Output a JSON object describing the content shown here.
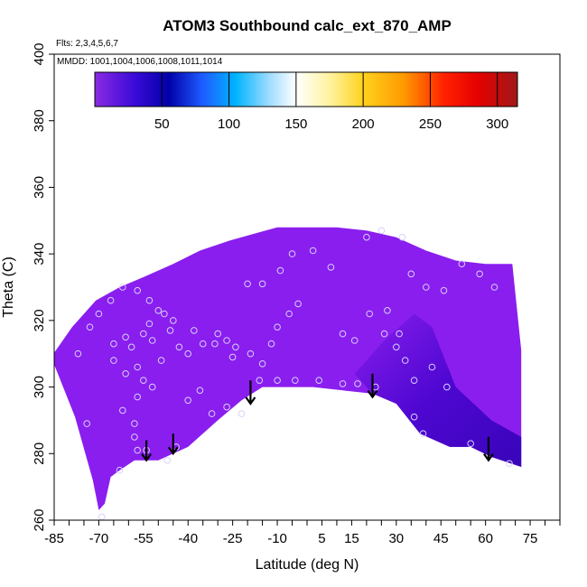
{
  "chart_data": {
    "type": "heatmap",
    "title": "ATOM3 Southbound calc_ext_870_AMP",
    "flights_note": "Flts: 2,3,4,5,6,7",
    "dates_note": "MMDD: 1001,1004,1006,1008,1011,1014",
    "xlabel": "Latitude (deg N)",
    "ylabel": "Theta (C)",
    "xlim": [
      -85,
      85
    ],
    "ylim": [
      260,
      400
    ],
    "x_ticks": [
      -85,
      -70,
      -55,
      -40,
      -25,
      -10,
      5,
      15,
      30,
      45,
      60,
      75
    ],
    "x_tick_labels": [
      "-85",
      "-70",
      "-55",
      "-40",
      "-25",
      "-10",
      "5",
      "15",
      "30",
      "45",
      "60",
      "75"
    ],
    "y_ticks": [
      260,
      280,
      300,
      320,
      340,
      360,
      380,
      400
    ],
    "y_tick_labels": [
      "260",
      "280",
      "300",
      "320",
      "340",
      "360",
      "380",
      "400"
    ],
    "colorbar": {
      "range": [
        0,
        315
      ],
      "ticks": [
        50,
        100,
        150,
        200,
        250,
        300
      ],
      "tick_labels": [
        "50",
        "100",
        "150",
        "200",
        "250",
        "300"
      ],
      "stops": [
        {
          "v": 0,
          "c": "#8a2be2"
        },
        {
          "v": 30,
          "c": "#3a0ad8"
        },
        {
          "v": 55,
          "c": "#0000a8"
        },
        {
          "v": 80,
          "c": "#1e5bff"
        },
        {
          "v": 105,
          "c": "#00b4ff"
        },
        {
          "v": 130,
          "c": "#9fdcff"
        },
        {
          "v": 150,
          "c": "#ffffff"
        },
        {
          "v": 175,
          "c": "#fff3a0"
        },
        {
          "v": 200,
          "c": "#ffd21e"
        },
        {
          "v": 230,
          "c": "#ff9a00"
        },
        {
          "v": 260,
          "c": "#ff2200"
        },
        {
          "v": 285,
          "c": "#e60000"
        },
        {
          "v": 315,
          "c": "#a01818"
        }
      ]
    },
    "field_base_color": "#8a1eee",
    "darker_region_color": "#3c00c8",
    "domain_upper_boundary": [
      [
        -86,
        309
      ],
      [
        -79,
        318
      ],
      [
        -71,
        326
      ],
      [
        -63,
        330
      ],
      [
        -55,
        333
      ],
      [
        -45,
        337
      ],
      [
        -36,
        341
      ],
      [
        -26,
        344
      ],
      [
        -18,
        346
      ],
      [
        -10,
        348
      ],
      [
        0,
        348
      ],
      [
        10,
        348
      ],
      [
        20,
        347
      ],
      [
        30,
        345
      ],
      [
        40,
        341
      ],
      [
        50,
        338
      ],
      [
        60,
        337
      ],
      [
        69,
        337
      ],
      [
        72,
        311
      ]
    ],
    "domain_lower_boundary": [
      [
        -86,
        309
      ],
      [
        -78,
        291
      ],
      [
        -72,
        272
      ],
      [
        -70,
        263
      ],
      [
        -68,
        265
      ],
      [
        -66,
        273
      ],
      [
        -63,
        275
      ],
      [
        -58,
        278
      ],
      [
        -50,
        278
      ],
      [
        -40,
        282
      ],
      [
        -30,
        290
      ],
      [
        -22,
        296
      ],
      [
        -15,
        300
      ],
      [
        -8,
        300
      ],
      [
        2,
        300
      ],
      [
        12,
        299
      ],
      [
        22,
        298
      ],
      [
        30,
        295
      ],
      [
        38,
        286
      ],
      [
        48,
        282
      ],
      [
        55,
        282
      ],
      [
        62,
        279
      ],
      [
        72,
        276
      ]
    ],
    "darker_region": [
      [
        16,
        304
      ],
      [
        26,
        314
      ],
      [
        36,
        322
      ],
      [
        42,
        318
      ],
      [
        50,
        300
      ],
      [
        62,
        290
      ],
      [
        72,
        285
      ],
      [
        72,
        276
      ],
      [
        62,
        279
      ],
      [
        55,
        282
      ],
      [
        48,
        282
      ],
      [
        38,
        286
      ],
      [
        30,
        295
      ],
      [
        22,
        298
      ]
    ],
    "observations": [
      [
        -69,
        261
      ],
      [
        -63,
        275
      ],
      [
        -57,
        281
      ],
      [
        -58,
        285
      ],
      [
        -58,
        289
      ],
      [
        -62,
        293
      ],
      [
        -57,
        297
      ],
      [
        -55,
        302
      ],
      [
        -52,
        300
      ],
      [
        -49,
        308
      ],
      [
        -57,
        306
      ],
      [
        -61,
        304
      ],
      [
        -65,
        308
      ],
      [
        -74,
        289
      ],
      [
        -77,
        310
      ],
      [
        -65,
        313
      ],
      [
        -61,
        315
      ],
      [
        -59,
        312
      ],
      [
        -55,
        316
      ],
      [
        -52,
        314
      ],
      [
        -46,
        317
      ],
      [
        -43,
        312
      ],
      [
        -40,
        310
      ],
      [
        -35,
        313
      ],
      [
        -30,
        316
      ],
      [
        -27,
        314
      ],
      [
        -24,
        312
      ],
      [
        -19,
        310
      ],
      [
        -15,
        307
      ],
      [
        -12,
        313
      ],
      [
        -10,
        318
      ],
      [
        -6,
        322
      ],
      [
        -3,
        325
      ],
      [
        -50,
        323
      ],
      [
        -48,
        322
      ],
      [
        -45,
        320
      ],
      [
        -53,
        326
      ],
      [
        -57,
        329
      ],
      [
        -62,
        330
      ],
      [
        -66,
        326
      ],
      [
        -70,
        322
      ],
      [
        -73,
        318
      ],
      [
        -20,
        331
      ],
      [
        -15,
        331
      ],
      [
        -9,
        335
      ],
      [
        -5,
        340
      ],
      [
        2,
        341
      ],
      [
        8,
        336
      ],
      [
        20,
        345
      ],
      [
        25,
        347
      ],
      [
        32,
        345
      ],
      [
        35,
        334
      ],
      [
        40,
        330
      ],
      [
        46,
        329
      ],
      [
        52,
        337
      ],
      [
        58,
        334
      ],
      [
        63,
        330
      ],
      [
        -40,
        296
      ],
      [
        -36,
        299
      ],
      [
        -32,
        292
      ],
      [
        -27,
        294
      ],
      [
        -22,
        292
      ],
      [
        -16,
        302
      ],
      [
        -10,
        302
      ],
      [
        -4,
        302
      ],
      [
        4,
        302
      ],
      [
        12,
        301
      ],
      [
        17,
        301
      ],
      [
        23,
        300
      ],
      [
        26,
        316
      ],
      [
        30,
        312
      ],
      [
        33,
        308
      ],
      [
        36,
        302
      ],
      [
        42,
        306
      ],
      [
        47,
        300
      ],
      [
        36,
        291
      ],
      [
        39,
        286
      ],
      [
        55,
        283
      ],
      [
        68,
        277
      ],
      [
        -47,
        278
      ],
      [
        -54,
        281
      ],
      [
        -44,
        282
      ],
      [
        12,
        316
      ],
      [
        16,
        314
      ],
      [
        21,
        322
      ],
      [
        27,
        323
      ],
      [
        31,
        316
      ],
      [
        -38,
        317
      ],
      [
        -31,
        313
      ],
      [
        -25,
        309
      ],
      [
        -53,
        319
      ]
    ],
    "arrows": [
      {
        "x": -54,
        "y_top": 284,
        "y_bottom": 278
      },
      {
        "x": -45,
        "y_top": 286,
        "y_bottom": 280
      },
      {
        "x": -19,
        "y_top": 302,
        "y_bottom": 295
      },
      {
        "x": 22,
        "y_top": 304,
        "y_bottom": 297
      },
      {
        "x": 61,
        "y_top": 285,
        "y_bottom": 278
      }
    ]
  }
}
